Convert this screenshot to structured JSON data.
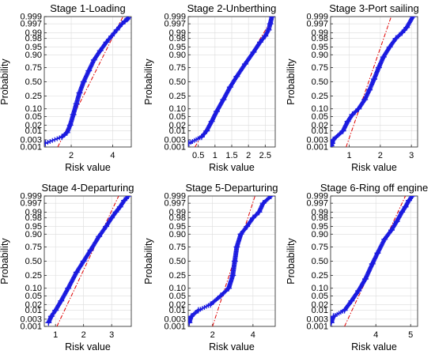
{
  "figure": {
    "ylabel": "Probability",
    "xlabel": "Risk value",
    "colors": {
      "marker": "#1a1adf",
      "fit_line": "#e00000",
      "grid": "#dcdcdc"
    }
  },
  "chart_data": [
    {
      "type": "scatter",
      "title": "Stage 1-Loading",
      "xlabel": "Risk value",
      "ylabel": "Probability",
      "xlim": [
        0.7,
        4.9
      ],
      "xticks": [
        2,
        4
      ],
      "yticks": [
        "0.001",
        "0.003",
        "0.01",
        "0.02",
        "0.05",
        "0.10",
        "0.25",
        "0.50",
        "0.75",
        "0.90",
        "0.95",
        "0.98",
        "0.99",
        "0.997",
        "0.999"
      ],
      "ytick_values": [
        0.001,
        0.003,
        0.01,
        0.02,
        0.05,
        0.1,
        0.25,
        0.5,
        0.75,
        0.9,
        0.95,
        0.98,
        0.99,
        0.997,
        0.999
      ],
      "grid": true,
      "fit_line": [
        [
          1.35,
          0.001
        ],
        [
          4.5,
          0.999
        ]
      ],
      "series": [
        {
          "points": [
            [
              0.75,
              0.0018
            ],
            [
              1.55,
              0.0045
            ],
            [
              1.8,
              0.008
            ],
            [
              1.95,
              0.02
            ],
            [
              2.1,
              0.06
            ],
            [
              2.25,
              0.15
            ],
            [
              2.4,
              0.3
            ],
            [
              2.6,
              0.5
            ],
            [
              2.85,
              0.7
            ],
            [
              3.1,
              0.85
            ],
            [
              3.4,
              0.93
            ],
            [
              3.7,
              0.97
            ],
            [
              3.95,
              0.985
            ],
            [
              4.2,
              0.993
            ],
            [
              4.45,
              0.997
            ],
            [
              4.6,
              0.998
            ],
            [
              4.7,
              0.9985
            ],
            [
              4.78,
              0.9988
            ]
          ]
        }
      ]
    },
    {
      "type": "scatter",
      "title": "Stage 2-Unberthing",
      "xlabel": "Risk value",
      "ylabel": "Probability",
      "xlim": [
        0.2,
        2.8
      ],
      "xticks": [
        0.5,
        1,
        1.5,
        2,
        2.5
      ],
      "yticks": [
        "0.001",
        "0.003",
        "0.01",
        "0.02",
        "0.05",
        "0.10",
        "0.25",
        "0.50",
        "0.75",
        "0.90",
        "0.95",
        "0.98",
        "0.99",
        "0.997",
        "0.999"
      ],
      "ytick_values": [
        0.001,
        0.003,
        0.01,
        0.02,
        0.05,
        0.1,
        0.25,
        0.5,
        0.75,
        0.9,
        0.95,
        0.98,
        0.99,
        0.997,
        0.999
      ],
      "grid": true,
      "fit_line": [
        [
          0.4,
          0.001
        ],
        [
          2.75,
          0.999
        ]
      ],
      "series": [
        {
          "points": [
            [
              0.22,
              0.0018
            ],
            [
              0.6,
              0.0045
            ],
            [
              0.75,
              0.01
            ],
            [
              0.9,
              0.03
            ],
            [
              1.05,
              0.08
            ],
            [
              1.25,
              0.2
            ],
            [
              1.45,
              0.4
            ],
            [
              1.65,
              0.6
            ],
            [
              1.9,
              0.8
            ],
            [
              2.15,
              0.92
            ],
            [
              2.35,
              0.97
            ],
            [
              2.5,
              0.985
            ],
            [
              2.6,
              0.993
            ],
            [
              2.65,
              0.997
            ],
            [
              2.7,
              0.999
            ]
          ]
        }
      ]
    },
    {
      "type": "scatter",
      "title": "Stage 3-Port sailing",
      "xlabel": "Risk value",
      "ylabel": "Probability",
      "xlim": [
        0.4,
        3.2
      ],
      "xticks": [
        1,
        2,
        3
      ],
      "yticks": [
        "0.001",
        "0.003",
        "0.01",
        "0.02",
        "0.05",
        "0.10",
        "0.25",
        "0.50",
        "0.75",
        "0.90",
        "0.95",
        "0.98",
        "0.99",
        "0.997",
        "0.999"
      ],
      "ytick_values": [
        0.001,
        0.003,
        0.01,
        0.02,
        0.05,
        0.1,
        0.25,
        0.5,
        0.75,
        0.9,
        0.95,
        0.98,
        0.99,
        0.997,
        0.999
      ],
      "grid": true,
      "fit_line": [
        [
          0.9,
          0.001
        ],
        [
          2.35,
          0.999
        ]
      ],
      "series": [
        {
          "points": [
            [
              0.42,
              0.0012
            ],
            [
              0.45,
              0.0018
            ],
            [
              0.48,
              0.003
            ],
            [
              0.8,
              0.01
            ],
            [
              0.95,
              0.03
            ],
            [
              1.1,
              0.06
            ],
            [
              1.3,
              0.1
            ],
            [
              1.5,
              0.2
            ],
            [
              1.65,
              0.35
            ],
            [
              1.8,
              0.55
            ],
            [
              1.95,
              0.75
            ],
            [
              2.1,
              0.88
            ],
            [
              2.3,
              0.95
            ],
            [
              2.5,
              0.98
            ],
            [
              2.7,
              0.99
            ],
            [
              2.85,
              0.995
            ],
            [
              3.05,
              0.999
            ]
          ]
        }
      ]
    },
    {
      "type": "scatter",
      "title": "Stage 4-Departuring",
      "xlabel": "Risk value",
      "ylabel": "Probability",
      "xlim": [
        0.6,
        3.7
      ],
      "xticks": [
        1,
        2,
        3
      ],
      "yticks": [
        "0.001",
        "0.003",
        "0.01",
        "0.02",
        "0.05",
        "0.10",
        "0.25",
        "0.50",
        "0.75",
        "0.90",
        "0.95",
        "0.98",
        "0.99",
        "0.997",
        "0.999"
      ],
      "ytick_values": [
        0.001,
        0.003,
        0.01,
        0.02,
        0.05,
        0.1,
        0.25,
        0.5,
        0.75,
        0.9,
        0.95,
        0.98,
        0.99,
        0.997,
        0.999
      ],
      "grid": true,
      "fit_line": [
        [
          1.05,
          0.001
        ],
        [
          3.25,
          0.999
        ]
      ],
      "series": [
        {
          "points": [
            [
              0.75,
              0.0018
            ],
            [
              0.85,
              0.0045
            ],
            [
              1.0,
              0.01
            ],
            [
              1.2,
              0.03
            ],
            [
              1.45,
              0.1
            ],
            [
              1.75,
              0.3
            ],
            [
              2.0,
              0.5
            ],
            [
              2.25,
              0.7
            ],
            [
              2.55,
              0.88
            ],
            [
              2.8,
              0.95
            ],
            [
              3.0,
              0.98
            ],
            [
              3.15,
              0.99
            ],
            [
              3.3,
              0.995
            ],
            [
              3.45,
              0.998
            ],
            [
              3.6,
              0.999
            ]
          ]
        }
      ]
    },
    {
      "type": "scatter",
      "title": "Stage 5-Departuring",
      "xlabel": "Risk value",
      "ylabel": "Probability",
      "xlim": [
        0.8,
        5.1
      ],
      "xticks": [
        2,
        4
      ],
      "yticks": [
        "0.001",
        "0.003",
        "0.01",
        "0.02",
        "0.05",
        "0.10",
        "0.25",
        "0.50",
        "0.75",
        "0.90",
        "0.95",
        "0.98",
        "0.99",
        "0.997",
        "0.999"
      ],
      "ytick_values": [
        0.001,
        0.003,
        0.01,
        0.02,
        0.05,
        0.1,
        0.25,
        0.5,
        0.75,
        0.9,
        0.95,
        0.98,
        0.99,
        0.997,
        0.999
      ],
      "grid": true,
      "fit_line": [
        [
          2.0,
          0.001
        ],
        [
          4.1,
          0.999
        ]
      ],
      "series": [
        {
          "points": [
            [
              0.85,
              0.0018
            ],
            [
              0.95,
              0.0045
            ],
            [
              1.3,
              0.01
            ],
            [
              1.9,
              0.02
            ],
            [
              2.4,
              0.05
            ],
            [
              2.8,
              0.1
            ],
            [
              3.0,
              0.25
            ],
            [
              3.1,
              0.5
            ],
            [
              3.2,
              0.75
            ],
            [
              3.4,
              0.9
            ],
            [
              3.7,
              0.95
            ],
            [
              4.0,
              0.98
            ],
            [
              4.3,
              0.99
            ],
            [
              4.5,
              0.997
            ],
            [
              4.9,
              0.999
            ]
          ]
        }
      ]
    },
    {
      "type": "scatter",
      "title": "Stage 6-Ring off engine",
      "xlabel": "Risk value",
      "ylabel": "Probability",
      "xlim": [
        2.7,
        5.2
      ],
      "xticks": [
        4,
        5
      ],
      "yticks": [
        "0.001",
        "0.003",
        "0.01",
        "0.02",
        "0.05",
        "0.10",
        "0.25",
        "0.50",
        "0.75",
        "0.90",
        "0.95",
        "0.98",
        "0.99",
        "0.997",
        "0.999"
      ],
      "ytick_values": [
        0.001,
        0.003,
        0.01,
        0.02,
        0.05,
        0.1,
        0.25,
        0.5,
        0.75,
        0.9,
        0.95,
        0.98,
        0.99,
        0.997,
        0.999
      ],
      "grid": true,
      "fit_line": [
        [
          3.1,
          0.001
        ],
        [
          4.85,
          0.999
        ]
      ],
      "series": [
        {
          "points": [
            [
              2.72,
              0.0018
            ],
            [
              2.78,
              0.0045
            ],
            [
              3.1,
              0.01
            ],
            [
              3.3,
              0.03
            ],
            [
              3.5,
              0.08
            ],
            [
              3.7,
              0.2
            ],
            [
              3.9,
              0.45
            ],
            [
              4.05,
              0.65
            ],
            [
              4.25,
              0.85
            ],
            [
              4.45,
              0.93
            ],
            [
              4.6,
              0.97
            ],
            [
              4.75,
              0.99
            ],
            [
              4.85,
              0.995
            ],
            [
              4.95,
              0.998
            ],
            [
              5.05,
              0.999
            ]
          ]
        }
      ]
    }
  ]
}
